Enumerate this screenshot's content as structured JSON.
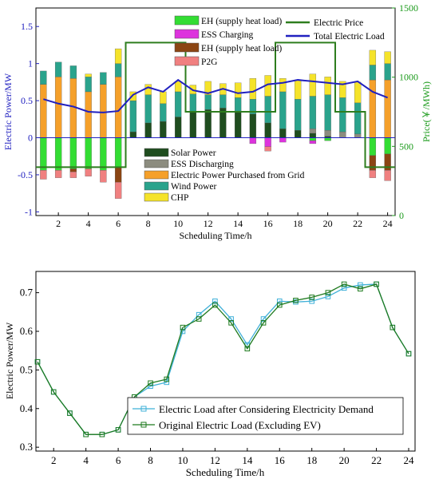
{
  "chart_data": [
    {
      "type": "bar",
      "title": "",
      "xlabel": "Scheduling Time/h",
      "ylabel": "Electric Power/MW",
      "y2label": "Price(￥/MWh)",
      "x": [
        1,
        2,
        3,
        4,
        5,
        6,
        7,
        8,
        9,
        10,
        11,
        12,
        13,
        14,
        15,
        16,
        17,
        18,
        19,
        20,
        21,
        22,
        23,
        24
      ],
      "x_ticks": [
        2,
        4,
        6,
        8,
        10,
        12,
        14,
        16,
        18,
        20,
        22,
        24
      ],
      "ylim": [
        -1.05,
        1.75
      ],
      "y_ticks": [
        "-1",
        "-0.5",
        "0",
        "0.5",
        "1",
        "1.5"
      ],
      "y2lim": [
        0,
        1500
      ],
      "y2_ticks": [
        "0",
        "500",
        "1000",
        "1500"
      ],
      "legend_top_left": [
        "EH (supply heat load)",
        "ESS Charging",
        "EH (supply heat load)",
        "P2G"
      ],
      "legend_top_right": [
        "Electric Price",
        "Total Electric Load"
      ],
      "legend_lower": [
        "Solar Power",
        "ESS Discharging",
        "Electric Power Purchased from Grid",
        "Wind Power",
        "CHP"
      ],
      "colors": {
        "solar": "#1f4d1f",
        "ess_discharging": "#8c8c7f",
        "grid": "#f5a02a",
        "wind": "#2aa38c",
        "chp": "#f5e32a",
        "eh_supply": "#33dd33",
        "ess_charging": "#dd33dd",
        "eh_supply_2": "#8b4513",
        "p2g": "#f08080",
        "price": "#2e7d1e",
        "total_load": "#2020c0",
        "left_axis": "#2020c0",
        "right_axis": "#1a9a1a"
      },
      "series": [
        {
          "name": "Solar Power",
          "stack": "pos",
          "values": [
            0,
            0,
            0,
            0,
            0,
            0,
            0.08,
            0.2,
            0.22,
            0.28,
            0.35,
            0.38,
            0.4,
            0.36,
            0.32,
            0.2,
            0.12,
            0.1,
            0.06,
            0.02,
            0,
            0,
            0,
            0
          ]
        },
        {
          "name": "ESS Discharging",
          "stack": "pos",
          "values": [
            0,
            0,
            0,
            0,
            0,
            0,
            0,
            0,
            0,
            0,
            0,
            0,
            0,
            0,
            0,
            0,
            0,
            0,
            0.06,
            0.08,
            0.08,
            0.05,
            0,
            0
          ]
        },
        {
          "name": "Electric Power Purchased from Grid",
          "stack": "pos",
          "values": [
            0.72,
            0.82,
            0.8,
            0.62,
            0.72,
            0.82,
            0,
            0,
            0,
            0,
            0,
            0,
            0,
            0,
            0,
            0,
            0,
            0,
            0,
            0,
            0,
            0,
            0.78,
            0.78
          ]
        },
        {
          "name": "Wind Power",
          "stack": "pos",
          "values": [
            0.18,
            0.2,
            0.17,
            0.2,
            0.16,
            0.18,
            0.42,
            0.38,
            0.24,
            0.34,
            0.24,
            0.2,
            0.18,
            0.18,
            0.2,
            0.36,
            0.5,
            0.42,
            0.44,
            0.48,
            0.46,
            0.42,
            0.2,
            0.22
          ]
        },
        {
          "name": "CHP",
          "stack": "pos",
          "values": [
            0,
            0,
            0,
            0.04,
            0,
            0.2,
            0.12,
            0.14,
            0.16,
            0.14,
            0.12,
            0.18,
            0.15,
            0.2,
            0.28,
            0.28,
            0.18,
            0.26,
            0.3,
            0.24,
            0.22,
            0.28,
            0.2,
            0.16
          ]
        },
        {
          "name": "EH (supply heat load)",
          "stack": "neg",
          "values": [
            -0.44,
            -0.44,
            -0.42,
            -0.42,
            -0.44,
            -0.4,
            0,
            0,
            0,
            0,
            0,
            0,
            0,
            0,
            0,
            0,
            0,
            0,
            -0.04,
            -0.04,
            0,
            0,
            -0.24,
            -0.22
          ]
        },
        {
          "name": "ESS Charging",
          "stack": "neg",
          "values": [
            0,
            0,
            0,
            0,
            0,
            0,
            0,
            0,
            0,
            0,
            0,
            0,
            0,
            0,
            -0.08,
            -0.12,
            -0.06,
            0,
            -0.04,
            0,
            0,
            0,
            0,
            0
          ]
        },
        {
          "name": "EH (supply heat load)",
          "stack": "neg",
          "values": [
            0,
            0,
            -0.04,
            0,
            0,
            -0.2,
            0,
            0,
            0,
            0,
            0,
            0,
            0,
            0,
            0,
            0,
            0,
            0,
            0,
            0,
            0,
            0,
            -0.2,
            -0.22
          ]
        },
        {
          "name": "P2G",
          "stack": "neg",
          "values": [
            -0.12,
            -0.1,
            -0.08,
            -0.1,
            -0.16,
            -0.22,
            0,
            0,
            0,
            0,
            0,
            0,
            0,
            0,
            0,
            -0.06,
            0,
            0,
            0,
            0,
            0,
            0,
            -0.1,
            -0.14
          ]
        }
      ],
      "lines": [
        {
          "name": "Electric Price",
          "axis": "right",
          "step": true,
          "values": [
            350,
            350,
            350,
            350,
            350,
            350,
            1250,
            1250,
            1250,
            1250,
            750,
            750,
            750,
            750,
            750,
            750,
            1250,
            1250,
            1250,
            1250,
            750,
            750,
            350,
            350
          ]
        },
        {
          "name": "Total Electric Load",
          "axis": "left",
          "values": [
            0.52,
            0.46,
            0.42,
            0.35,
            0.34,
            0.36,
            0.58,
            0.68,
            0.62,
            0.78,
            0.64,
            0.6,
            0.66,
            0.6,
            0.62,
            0.72,
            0.74,
            0.78,
            0.76,
            0.74,
            0.72,
            0.76,
            0.62,
            0.54
          ]
        }
      ]
    },
    {
      "type": "line",
      "title": "",
      "xlabel": "Scheduling Time/h",
      "ylabel": "Electric Power/MW",
      "x": [
        1,
        2,
        3,
        4,
        5,
        6,
        7,
        8,
        9,
        10,
        11,
        12,
        13,
        14,
        15,
        16,
        17,
        18,
        19,
        20,
        21,
        22,
        23,
        24
      ],
      "x_ticks": [
        2,
        4,
        6,
        8,
        10,
        12,
        14,
        16,
        18,
        20,
        22,
        24
      ],
      "ylim": [
        0.29,
        0.755
      ],
      "y_ticks": [
        "0.3",
        "0.4",
        "0.5",
        "0.6",
        "0.7"
      ],
      "colors": {
        "series1": "#3fb0d8",
        "series2": "#1e7a1e"
      },
      "series": [
        {
          "name": "Electric Load after Considering Electricity Demand",
          "marker": "square",
          "values": [
            0.521,
            0.443,
            0.388,
            0.333,
            0.333,
            0.345,
            0.43,
            0.458,
            0.468,
            0.6,
            0.643,
            0.678,
            0.632,
            0.565,
            0.632,
            0.678,
            0.676,
            0.678,
            0.69,
            0.712,
            0.72,
            0.722,
            0.61,
            0.542
          ]
        },
        {
          "name": "Original Electric Load (Excluding EV)",
          "marker": "square",
          "values": [
            0.521,
            0.443,
            0.388,
            0.333,
            0.333,
            0.345,
            0.43,
            0.466,
            0.476,
            0.61,
            0.632,
            0.668,
            0.622,
            0.555,
            0.622,
            0.668,
            0.68,
            0.688,
            0.7,
            0.722,
            0.71,
            0.722,
            0.61,
            0.542
          ]
        }
      ]
    }
  ]
}
